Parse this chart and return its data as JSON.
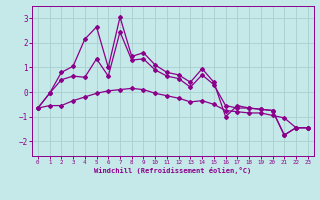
{
  "xlabel": "Windchill (Refroidissement éolien,°C)",
  "xlim": [
    -0.5,
    23.5
  ],
  "ylim": [
    -2.6,
    3.5
  ],
  "yticks": [
    -2,
    -1,
    0,
    1,
    2,
    3
  ],
  "xticks": [
    0,
    1,
    2,
    3,
    4,
    5,
    6,
    7,
    8,
    9,
    10,
    11,
    12,
    13,
    14,
    15,
    16,
    17,
    18,
    19,
    20,
    21,
    22,
    23
  ],
  "bg_color": "#c5e8e8",
  "grid_color": "#a8cece",
  "line_color": "#8b008b",
  "line1_y": [
    -0.65,
    -0.05,
    0.8,
    1.05,
    2.15,
    2.65,
    1.0,
    3.05,
    1.45,
    1.6,
    1.1,
    0.8,
    0.7,
    0.4,
    0.95,
    0.4,
    -1.0,
    -0.55,
    -0.65,
    -0.7,
    -0.75,
    -1.75,
    -1.45,
    -1.45
  ],
  "line2_y": [
    -0.65,
    -0.05,
    0.5,
    0.65,
    0.6,
    1.35,
    0.65,
    2.45,
    1.3,
    1.35,
    0.9,
    0.65,
    0.55,
    0.2,
    0.7,
    0.3,
    -0.55,
    -0.65,
    -0.65,
    -0.7,
    -0.75,
    -1.75,
    -1.45,
    -1.45
  ],
  "line3_y": [
    -0.65,
    -0.55,
    -0.55,
    -0.35,
    -0.2,
    -0.05,
    0.05,
    0.1,
    0.15,
    0.1,
    -0.05,
    -0.15,
    -0.25,
    -0.4,
    -0.35,
    -0.5,
    -0.75,
    -0.8,
    -0.85,
    -0.85,
    -0.95,
    -1.05,
    -1.45,
    -1.45
  ]
}
